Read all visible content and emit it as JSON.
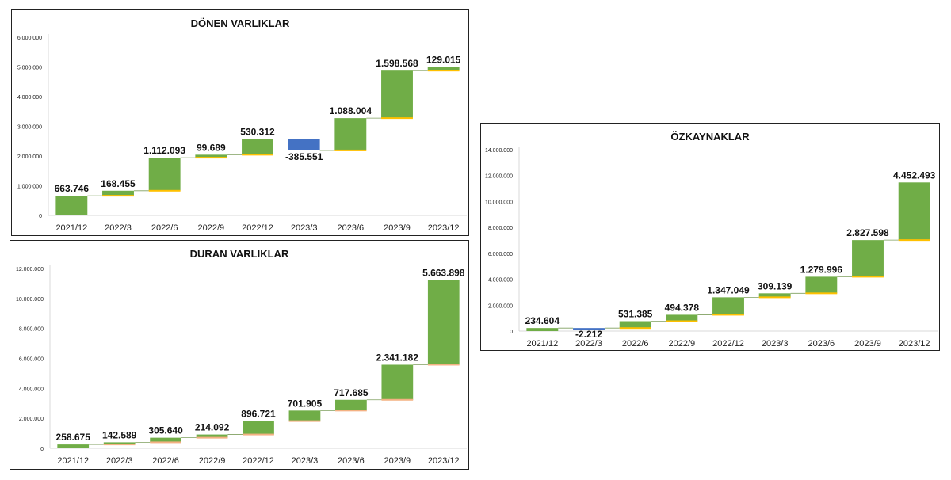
{
  "chart_data": [
    {
      "id": "donen",
      "type": "waterfall",
      "title": "DÖNEN VARLIKLAR",
      "categories": [
        "2021/12",
        "2022/3",
        "2022/6",
        "2022/9",
        "2022/12",
        "2023/3",
        "2023/6",
        "2023/9",
        "2023/12"
      ],
      "values": [
        663746,
        168455,
        1112093,
        99689,
        530312,
        -385551,
        1088004,
        1598568,
        129015
      ],
      "labels": [
        "663.746",
        "168.455",
        "1.112.093",
        "99.689",
        "530.312",
        "-385.551",
        "1.088.004",
        "1.598.568",
        "129.015"
      ],
      "ylim": [
        0,
        6000000
      ],
      "yticks": [
        0,
        1000000,
        2000000,
        3000000,
        4000000,
        5000000,
        6000000
      ],
      "ytick_labels": [
        "0",
        "1.000.000",
        "2.000.000",
        "3.000.000",
        "4.000.000",
        "5.000.000",
        "6.000.000"
      ],
      "colors": {
        "increase": "#70AD47",
        "decrease": "#4472C4",
        "base_edge": "#FFC000"
      }
    },
    {
      "id": "duran",
      "type": "waterfall",
      "title": "DURAN VARLIKLAR",
      "categories": [
        "2021/12",
        "2022/3",
        "2022/6",
        "2022/9",
        "2022/12",
        "2023/3",
        "2023/6",
        "2023/9",
        "2023/12"
      ],
      "values": [
        258675,
        142589,
        305640,
        214092,
        896721,
        701905,
        717685,
        2341182,
        5663898
      ],
      "labels": [
        "258.675",
        "142.589",
        "305.640",
        "214.092",
        "896.721",
        "701.905",
        "717.685",
        "2.341.182",
        "5.663.898"
      ],
      "ylim": [
        0,
        12000000
      ],
      "yticks": [
        0,
        2000000,
        4000000,
        6000000,
        8000000,
        10000000,
        12000000
      ],
      "ytick_labels": [
        "0",
        "2.000.000",
        "4.000.000",
        "6.000.000",
        "8.000.000",
        "10.000.000",
        "12.000.000"
      ],
      "colors": {
        "increase": "#70AD47",
        "decrease": "#4472C4",
        "base_edge": "#F4B183"
      }
    },
    {
      "id": "ozkaynak",
      "type": "waterfall",
      "title": "ÖZKAYNAKLAR",
      "categories": [
        "2021/12",
        "2022/3",
        "2022/6",
        "2022/9",
        "2022/12",
        "2023/3",
        "2023/6",
        "2023/9",
        "2023/12"
      ],
      "values": [
        234604,
        -2212,
        531385,
        494378,
        1347049,
        309139,
        1279996,
        2827598,
        4452493
      ],
      "labels": [
        "234.604",
        "-2.212",
        "531.385",
        "494.378",
        "1.347.049",
        "309.139",
        "1.279.996",
        "2.827.598",
        "4.452.493"
      ],
      "ylim": [
        0,
        14000000
      ],
      "yticks": [
        0,
        2000000,
        4000000,
        6000000,
        8000000,
        10000000,
        12000000,
        14000000
      ],
      "ytick_labels": [
        "0",
        "2.000.000",
        "4.000.000",
        "6.000.000",
        "8.000.000",
        "10.000.000",
        "12.000.000",
        "14.000.000"
      ],
      "colors": {
        "increase": "#70AD47",
        "decrease": "#4472C4",
        "base_edge": "#FFC000"
      }
    }
  ]
}
